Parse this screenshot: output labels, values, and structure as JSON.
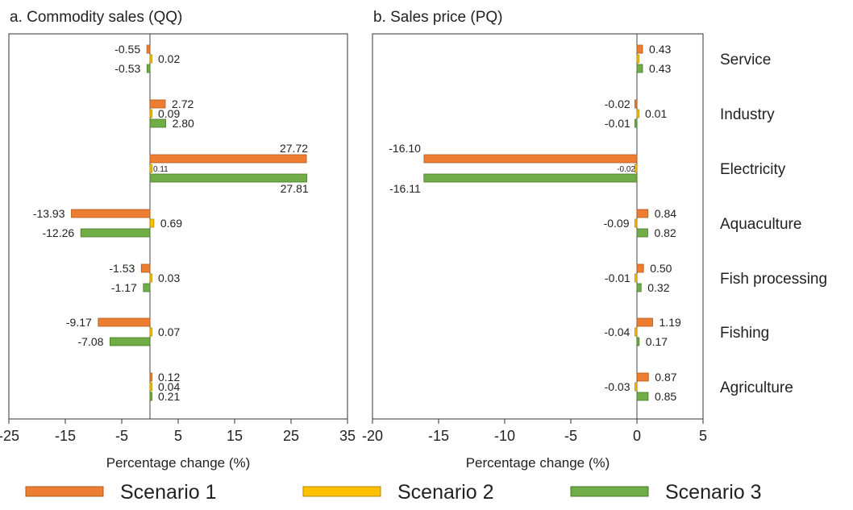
{
  "categories": [
    "Service",
    "Industry",
    "Electricity",
    "Aquaculture",
    "Fish processing",
    "Fishing",
    "Agriculture"
  ],
  "series_meta": [
    {
      "name": "Scenario 1",
      "color": "#ed7d31"
    },
    {
      "name": "Scenario 2",
      "color": "#ffc000"
    },
    {
      "name": "Scenario 3",
      "color": "#70ad47"
    }
  ],
  "chart_data": [
    {
      "type": "bar",
      "orientation": "horizontal",
      "title": "a. Commodity sales (QQ)",
      "xlabel": "Percentage change (%)",
      "xlim": [
        -25,
        35
      ],
      "xticks": [
        -25,
        -15,
        -5,
        5,
        15,
        25,
        35
      ],
      "zero_line": 0,
      "categories": [
        "Service",
        "Industry",
        "Electricity",
        "Aquaculture",
        "Fish processing",
        "Fishing",
        "Agriculture"
      ],
      "series": [
        {
          "name": "Scenario 1",
          "values": [
            -0.55,
            2.72,
            27.72,
            -13.93,
            -1.53,
            -9.17,
            0.12
          ],
          "labels": [
            "-0.55",
            "2.72",
            "27.72",
            "-13.93",
            "-1.53",
            "-9.17",
            "0.12"
          ]
        },
        {
          "name": "Scenario 2",
          "values": [
            0.02,
            0.09,
            0.11,
            0.69,
            0.03,
            0.07,
            0.04
          ],
          "labels": [
            "0.02",
            "0.09",
            "0.11",
            "0.69",
            "0.03",
            "0.07",
            "0.04"
          ]
        },
        {
          "name": "Scenario 3",
          "values": [
            -0.53,
            2.8,
            27.81,
            -12.26,
            -1.17,
            -7.08,
            0.21
          ],
          "labels": [
            "-0.53",
            "2.80",
            "27.81",
            "-12.26",
            "-1.17",
            "-7.08",
            "0.21"
          ]
        }
      ]
    },
    {
      "type": "bar",
      "orientation": "horizontal",
      "title": "b. Sales price (PQ)",
      "xlabel": "Percentage change (%)",
      "xlim": [
        -20,
        5
      ],
      "xticks": [
        -20,
        -15,
        -10,
        -5,
        0,
        5
      ],
      "zero_line": 0,
      "categories": [
        "Service",
        "Industry",
        "Electricity",
        "Aquaculture",
        "Fish processing",
        "Fishing",
        "Agriculture"
      ],
      "series": [
        {
          "name": "Scenario 1",
          "values": [
            0.43,
            -0.02,
            -16.1,
            0.84,
            0.5,
            1.19,
            0.87
          ],
          "labels": [
            "0.43",
            "-0.02",
            "-16.10",
            "0.84",
            "0.50",
            "1.19",
            "0.87"
          ]
        },
        {
          "name": "Scenario 2",
          "values": [
            0,
            0.01,
            -0.02,
            -0.09,
            -0.01,
            -0.04,
            -0.03
          ],
          "labels": [
            "",
            "0.01",
            "-0.02",
            "-0.09",
            "-0.01",
            "-0.04",
            "-0.03"
          ]
        },
        {
          "name": "Scenario 3",
          "values": [
            0.43,
            -0.01,
            -16.11,
            0.82,
            0.32,
            0.17,
            0.85
          ],
          "labels": [
            "0.43",
            "-0.01",
            "-16.11",
            "0.82",
            "0.32",
            "0.17",
            "0.85"
          ]
        }
      ]
    }
  ],
  "legend": {
    "position": "bottom"
  }
}
